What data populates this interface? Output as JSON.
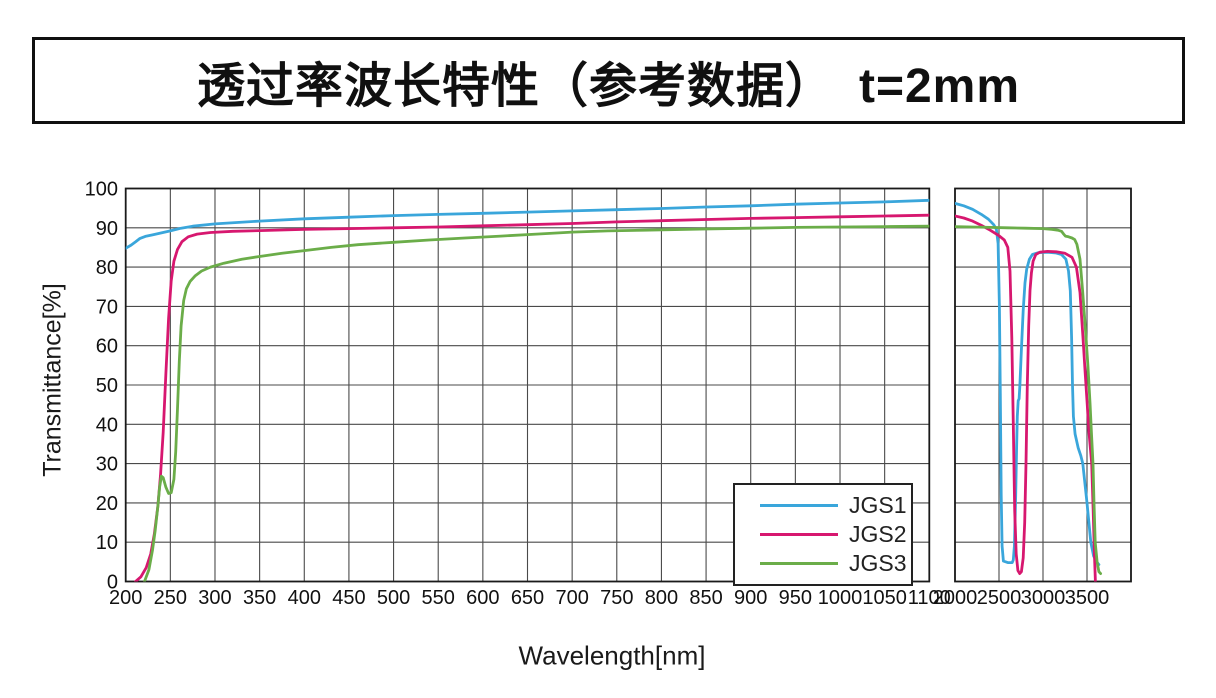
{
  "chart_data": {
    "type": "line",
    "title": "透过率波长特性（参考数据）　t=2mm",
    "xlabel": "Wavelength[nm]",
    "ylabel": "Transmittance[%]",
    "ylim": [
      0,
      100
    ],
    "y_ticks": [
      0,
      10,
      20,
      30,
      40,
      50,
      60,
      70,
      80,
      90,
      100
    ],
    "grid": true,
    "legend_position": "lower-right-inside",
    "grid_color": "#4a4a4a",
    "border_color": "#1a1a1a",
    "panels": [
      {
        "id": "uv_vis",
        "x_min": 200,
        "x_max": 1100,
        "x_ticks": [
          200,
          250,
          300,
          350,
          400,
          450,
          500,
          550,
          600,
          650,
          700,
          750,
          800,
          850,
          900,
          950,
          1000,
          1050,
          1100
        ],
        "x_grid": [
          200,
          250,
          300,
          350,
          400,
          450,
          500,
          550,
          600,
          650,
          700,
          750,
          800,
          850,
          900,
          950,
          1000,
          1050,
          1100
        ]
      },
      {
        "id": "ir",
        "x_min": 2000,
        "x_max": 4000,
        "x_ticks": [
          2000,
          2500,
          3000,
          3500
        ],
        "x_grid": [
          2000,
          2500,
          3000,
          3500,
          4000
        ]
      }
    ],
    "series": [
      {
        "name": "JGS1",
        "color": "#3aa6db",
        "segments": {
          "uv_vis": [
            [
              200,
              84.8
            ],
            [
              206,
              85.6
            ],
            [
              211,
              86.4
            ],
            [
              216,
              87.3
            ],
            [
              222,
              87.8
            ],
            [
              230,
              88.2
            ],
            [
              240,
              88.7
            ],
            [
              250,
              89.2
            ],
            [
              262,
              89.9
            ],
            [
              275,
              90.4
            ],
            [
              300,
              91
            ],
            [
              350,
              91.7
            ],
            [
              400,
              92.3
            ],
            [
              450,
              92.7
            ],
            [
              500,
              93.1
            ],
            [
              550,
              93.4
            ],
            [
              600,
              93.7
            ],
            [
              650,
              94
            ],
            [
              700,
              94.3
            ],
            [
              750,
              94.6
            ],
            [
              800,
              94.9
            ],
            [
              850,
              95.3
            ],
            [
              900,
              95.6
            ],
            [
              950,
              96
            ],
            [
              1000,
              96.3
            ],
            [
              1050,
              96.6
            ],
            [
              1100,
              97
            ]
          ],
          "ir": [
            [
              2000,
              96.2
            ],
            [
              2100,
              95.6
            ],
            [
              2200,
              94.7
            ],
            [
              2300,
              93.4
            ],
            [
              2380,
              92.2
            ],
            [
              2440,
              90.8
            ],
            [
              2470,
              89.6
            ],
            [
              2490,
              86
            ],
            [
              2505,
              70
            ],
            [
              2515,
              48
            ],
            [
              2525,
              22
            ],
            [
              2535,
              9
            ],
            [
              2550,
              5.2
            ],
            [
              2600,
              4.8
            ],
            [
              2650,
              4.8
            ],
            [
              2662,
              5.5
            ],
            [
              2675,
              9
            ],
            [
              2690,
              22
            ],
            [
              2700,
              34
            ],
            [
              2708,
              42
            ],
            [
              2718,
              46
            ],
            [
              2728,
              46.5
            ],
            [
              2738,
              50
            ],
            [
              2755,
              59
            ],
            [
              2775,
              69
            ],
            [
              2795,
              76
            ],
            [
              2815,
              79.5
            ],
            [
              2845,
              82
            ],
            [
              2880,
              83.2
            ],
            [
              2950,
              83.7
            ],
            [
              3050,
              83.8
            ],
            [
              3150,
              83.6
            ],
            [
              3210,
              83.2
            ],
            [
              3260,
              82
            ],
            [
              3290,
              79
            ],
            [
              3310,
              74
            ],
            [
              3325,
              62
            ],
            [
              3335,
              50
            ],
            [
              3345,
              42
            ],
            [
              3365,
              37.5
            ],
            [
              3400,
              34
            ],
            [
              3430,
              32
            ],
            [
              3452,
              30
            ],
            [
              3500,
              20
            ],
            [
              3543,
              10
            ],
            [
              3575,
              6.5
            ],
            [
              3610,
              5
            ],
            [
              3635,
              4.3
            ]
          ]
        }
      },
      {
        "name": "JGS2",
        "color": "#d7176f",
        "segments": {
          "uv_vis": [
            [
              211,
              0
            ],
            [
              217,
              1.2
            ],
            [
              223,
              3.5
            ],
            [
              228,
              7
            ],
            [
              232,
              12
            ],
            [
              236,
              19
            ],
            [
              239,
              27
            ],
            [
              242,
              38
            ],
            [
              245,
              53
            ],
            [
              248,
              67
            ],
            [
              251,
              76.5
            ],
            [
              254,
              81.5
            ],
            [
              258,
              84.5
            ],
            [
              263,
              86.5
            ],
            [
              270,
              87.7
            ],
            [
              280,
              88.4
            ],
            [
              295,
              88.8
            ],
            [
              320,
              89.1
            ],
            [
              350,
              89.3
            ],
            [
              400,
              89.6
            ],
            [
              450,
              89.8
            ],
            [
              500,
              90
            ],
            [
              550,
              90.2
            ],
            [
              600,
              90.5
            ],
            [
              650,
              90.8
            ],
            [
              700,
              91.1
            ],
            [
              750,
              91.5
            ],
            [
              800,
              91.8
            ],
            [
              850,
              92.1
            ],
            [
              900,
              92.4
            ],
            [
              950,
              92.6
            ],
            [
              1000,
              92.8
            ],
            [
              1050,
              93
            ],
            [
              1100,
              93.2
            ]
          ],
          "ir": [
            [
              2000,
              93
            ],
            [
              2100,
              92.5
            ],
            [
              2200,
              91.7
            ],
            [
              2300,
              90.6
            ],
            [
              2400,
              89.4
            ],
            [
              2500,
              88
            ],
            [
              2560,
              86.9
            ],
            [
              2600,
              85
            ],
            [
              2625,
              79
            ],
            [
              2645,
              62
            ],
            [
              2662,
              40
            ],
            [
              2678,
              18
            ],
            [
              2695,
              7
            ],
            [
              2715,
              2.8
            ],
            [
              2735,
              2
            ],
            [
              2755,
              2.5
            ],
            [
              2775,
              6
            ],
            [
              2792,
              15
            ],
            [
              2807,
              30
            ],
            [
              2822,
              50
            ],
            [
              2837,
              65
            ],
            [
              2852,
              74
            ],
            [
              2868,
              78.5
            ],
            [
              2888,
              81.5
            ],
            [
              2918,
              83.2
            ],
            [
              2965,
              83.8
            ],
            [
              3050,
              84
            ],
            [
              3150,
              83.9
            ],
            [
              3250,
              83.5
            ],
            [
              3330,
              82.5
            ],
            [
              3380,
              80
            ],
            [
              3420,
              73.5
            ],
            [
              3455,
              62
            ],
            [
              3480,
              53
            ],
            [
              3500,
              46
            ],
            [
              3523,
              38
            ],
            [
              3553,
              30
            ],
            [
              3570,
              18
            ],
            [
              3583,
              8
            ],
            [
              3595,
              0
            ]
          ]
        }
      },
      {
        "name": "JGS3",
        "color": "#6bad49",
        "segments": {
          "uv_vis": [
            [
              221,
              0
            ],
            [
              226,
              3
            ],
            [
              230,
              8
            ],
            [
              233,
              13
            ],
            [
              236,
              19
            ],
            [
              238,
              24
            ],
            [
              240,
              26.8
            ],
            [
              242,
              26.4
            ],
            [
              245,
              24
            ],
            [
              248,
              22.4
            ],
            [
              251,
              22.6
            ],
            [
              254,
              26
            ],
            [
              256,
              33
            ],
            [
              258,
              44
            ],
            [
              260,
              56
            ],
            [
              262,
              65
            ],
            [
              265,
              71.5
            ],
            [
              268,
              74.5
            ],
            [
              272,
              76.3
            ],
            [
              278,
              77.8
            ],
            [
              285,
              79
            ],
            [
              295,
              80
            ],
            [
              310,
              81
            ],
            [
              330,
              82
            ],
            [
              350,
              82.7
            ],
            [
              375,
              83.5
            ],
            [
              400,
              84.2
            ],
            [
              430,
              85
            ],
            [
              460,
              85.7
            ],
            [
              500,
              86.3
            ],
            [
              540,
              86.9
            ],
            [
              580,
              87.4
            ],
            [
              620,
              87.9
            ],
            [
              660,
              88.4
            ],
            [
              700,
              88.9
            ],
            [
              740,
              89.2
            ],
            [
              780,
              89.4
            ],
            [
              850,
              89.7
            ],
            [
              900,
              89.9
            ],
            [
              950,
              90.1
            ],
            [
              1000,
              90.2
            ],
            [
              1050,
              90.3
            ],
            [
              1100,
              90.4
            ]
          ],
          "ir": [
            [
              2000,
              90.3
            ],
            [
              2200,
              90.2
            ],
            [
              2400,
              90.1
            ],
            [
              2600,
              90
            ],
            [
              2800,
              89.9
            ],
            [
              3000,
              89.8
            ],
            [
              3100,
              89.6
            ],
            [
              3170,
              89.4
            ],
            [
              3210,
              89.1
            ],
            [
              3235,
              88.4
            ],
            [
              3255,
              87.9
            ],
            [
              3290,
              87.7
            ],
            [
              3330,
              87.4
            ],
            [
              3360,
              87
            ],
            [
              3385,
              85.8
            ],
            [
              3420,
              82
            ],
            [
              3450,
              74
            ],
            [
              3480,
              65
            ],
            [
              3510,
              55
            ],
            [
              3535,
              45
            ],
            [
              3550,
              38
            ],
            [
              3568,
              30
            ],
            [
              3580,
              20
            ],
            [
              3593,
              10
            ],
            [
              3615,
              5
            ],
            [
              3635,
              2.5
            ],
            [
              3655,
              2
            ]
          ]
        }
      }
    ]
  }
}
